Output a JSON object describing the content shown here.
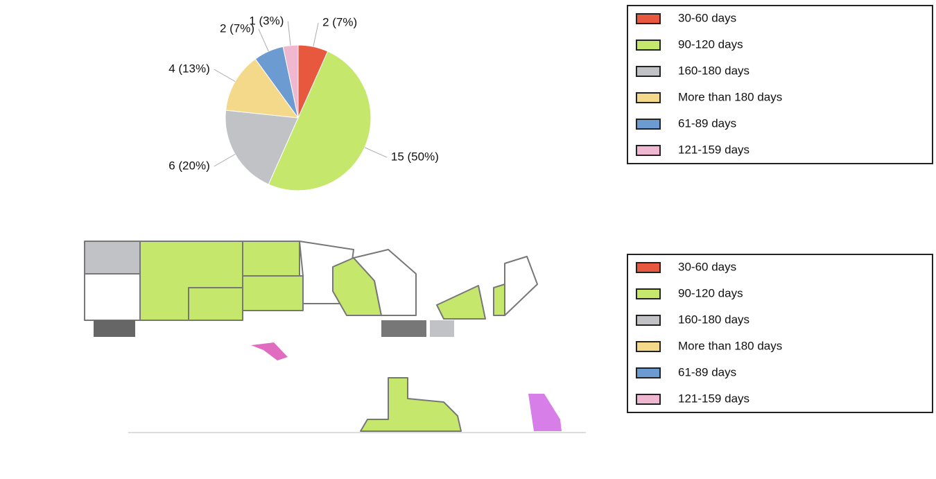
{
  "chart_data": [
    {
      "type": "pie",
      "categories": [
        "30-60 days",
        "90-120 days",
        "160-180 days",
        "More than 180 days",
        "61-89 days",
        "121-159 days"
      ],
      "values": [
        2,
        15,
        6,
        4,
        2,
        1
      ],
      "value_labels": [
        "2 (7%)",
        "15 (50%)",
        "6 (20%)",
        "4 (13%)",
        "2 (7%)",
        "1 (3%)"
      ],
      "colors": [
        "#e8583f",
        "#c5e86c",
        "#c0c2c6",
        "#f5d98b",
        "#6c9bd2",
        "#f0b8d0"
      ],
      "legend": "right"
    },
    {
      "type": "map",
      "categories": [
        "30-60 days",
        "90-120 days",
        "160-180 days",
        "More than 180 days",
        "61-89 days",
        "121-159 days"
      ],
      "colors": [
        "#e8583f",
        "#c5e86c",
        "#c0c2c6",
        "#f5d98b",
        "#6c9bd2",
        "#f0b8d0"
      ],
      "legend": "right"
    }
  ]
}
